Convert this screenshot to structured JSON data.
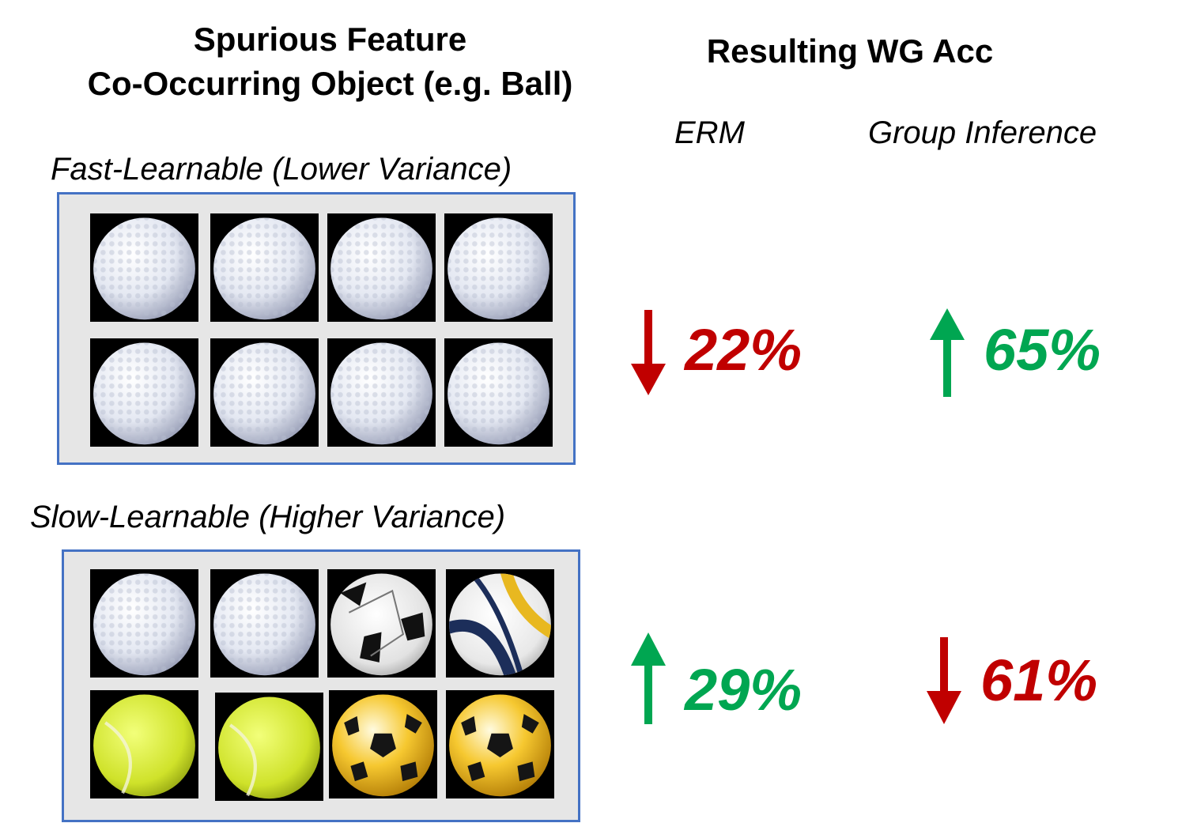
{
  "header": {
    "left_title_line1": "Spurious Feature",
    "left_title_line2": "Co-Occurring Object (e.g. Ball)",
    "right_title": "Resulting WG Acc",
    "col_erm": "ERM",
    "col_group_inference": "Group Inference"
  },
  "colors": {
    "down": "#c00000",
    "up": "#00a651",
    "panel_border": "#4472c4",
    "panel_bg": "#e6e6e6"
  },
  "groups": [
    {
      "label": "Fast-Learnable (Lower Variance)",
      "balls": [
        "golf-ball",
        "golf-ball",
        "golf-ball",
        "golf-ball",
        "golf-ball",
        "golf-ball",
        "golf-ball",
        "golf-ball"
      ],
      "erm": {
        "value": "22%",
        "direction": "down"
      },
      "group_inference": {
        "value": "65%",
        "direction": "up"
      }
    },
    {
      "label": "Slow-Learnable (Higher Variance)",
      "balls": [
        "golf-ball",
        "golf-ball",
        "soccer-ball-white",
        "volleyball",
        "tennis-ball",
        "tennis-ball",
        "soccer-ball-yellow",
        "soccer-ball-yellow"
      ],
      "erm": {
        "value": "29%",
        "direction": "up"
      },
      "group_inference": {
        "value": "61%",
        "direction": "down"
      }
    }
  ]
}
